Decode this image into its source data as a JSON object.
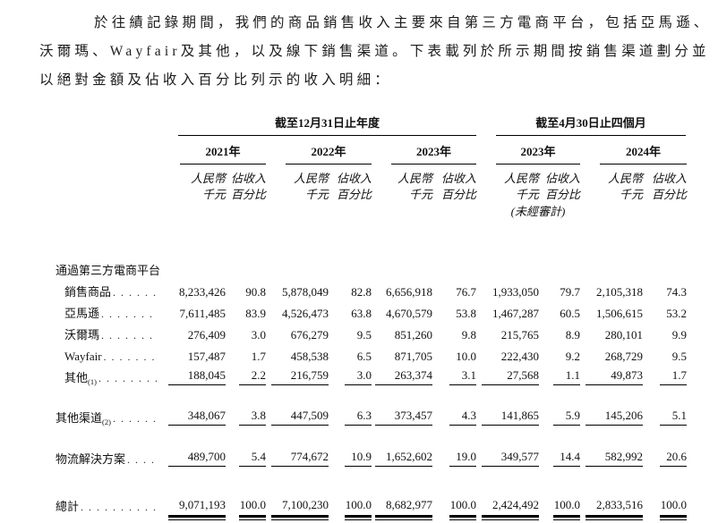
{
  "paragraph": {
    "lines": [
      "於往績記錄期間，我們的商品銷售收入主要來自第三方電商平台，包括亞馬遜、",
      "沃爾瑪、Wayfair及其他，以及線下銷售渠道。下表載列於所示期間按銷售渠道劃分並",
      "以絕對金額及佔收入百分比列示的收入明細："
    ]
  },
  "table": {
    "groups": [
      {
        "label": "截至12月31日止年度"
      },
      {
        "label": "截至4月30日止四個月"
      }
    ],
    "years": [
      "2021年",
      "2022年",
      "2023年",
      "2023年",
      "2024年"
    ],
    "units": {
      "amount_top": "人民幣",
      "amount_bottom": "千元",
      "pct_top": "佔收入",
      "pct_bottom": "百分比"
    },
    "unaudited": "(未經審計)",
    "rows": [
      {
        "label": "通過第三方電商平台",
        "sup": "",
        "bold": true,
        "indent": false,
        "leader": false,
        "gap": 42,
        "underline": "none",
        "values": []
      },
      {
        "label": "銷售商品",
        "sup": "",
        "bold": true,
        "indent": true,
        "leader": true,
        "gap": 0,
        "underline": "none",
        "values": [
          "8,233,426",
          "90.8",
          "5,878,049",
          "82.8",
          "6,656,918",
          "76.7",
          "1,933,050",
          "79.7",
          "2,105,318",
          "74.3"
        ]
      },
      {
        "label": "亞馬遜",
        "sup": "",
        "bold": false,
        "indent": true,
        "leader": true,
        "gap": 0,
        "underline": "none",
        "values": [
          "7,611,485",
          "83.9",
          "4,526,473",
          "63.8",
          "4,670,579",
          "53.8",
          "1,467,287",
          "60.5",
          "1,506,615",
          "53.2"
        ]
      },
      {
        "label": "沃爾瑪",
        "sup": "",
        "bold": false,
        "indent": true,
        "leader": true,
        "gap": 0,
        "underline": "none",
        "values": [
          "276,409",
          "3.0",
          "676,279",
          "9.5",
          "851,260",
          "9.8",
          "215,765",
          "8.9",
          "280,101",
          "9.9"
        ]
      },
      {
        "label": "Wayfair",
        "sup": "",
        "bold": false,
        "indent": true,
        "leader": true,
        "gap": 0,
        "underline": "none",
        "values": [
          "157,487",
          "1.7",
          "458,538",
          "6.5",
          "871,705",
          "10.0",
          "222,430",
          "9.2",
          "268,729",
          "9.5"
        ]
      },
      {
        "label": "其他",
        "sup": "(1)",
        "bold": false,
        "indent": true,
        "leader": true,
        "gap": 0,
        "underline": "single",
        "values": [
          "188,045",
          "2.2",
          "216,759",
          "3.0",
          "263,374",
          "3.1",
          "27,568",
          "1.1",
          "49,873",
          "1.7"
        ]
      },
      {
        "label": "其他渠道",
        "sup": "(2)",
        "bold": true,
        "indent": false,
        "leader": true,
        "gap": 21,
        "underline": "single",
        "values": [
          "348,067",
          "3.8",
          "447,509",
          "6.3",
          "373,457",
          "4.3",
          "141,865",
          "5.9",
          "145,206",
          "5.1"
        ]
      },
      {
        "label": "物流解決方案",
        "sup": "",
        "bold": true,
        "indent": false,
        "leader": true,
        "gap": 22,
        "underline": "single",
        "values": [
          "489,700",
          "5.4",
          "774,672",
          "10.9",
          "1,652,602",
          "19.0",
          "349,577",
          "14.4",
          "582,992",
          "20.6"
        ]
      },
      {
        "label": "總計",
        "sup": "",
        "bold": true,
        "indent": false,
        "leader": true,
        "gap": 29,
        "underline": "double",
        "values": [
          "9,071,193",
          "100.0",
          "7,100,230",
          "100.0",
          "8,682,977",
          "100.0",
          "2,424,492",
          "100.0",
          "2,833,516",
          "100.0"
        ]
      }
    ]
  }
}
